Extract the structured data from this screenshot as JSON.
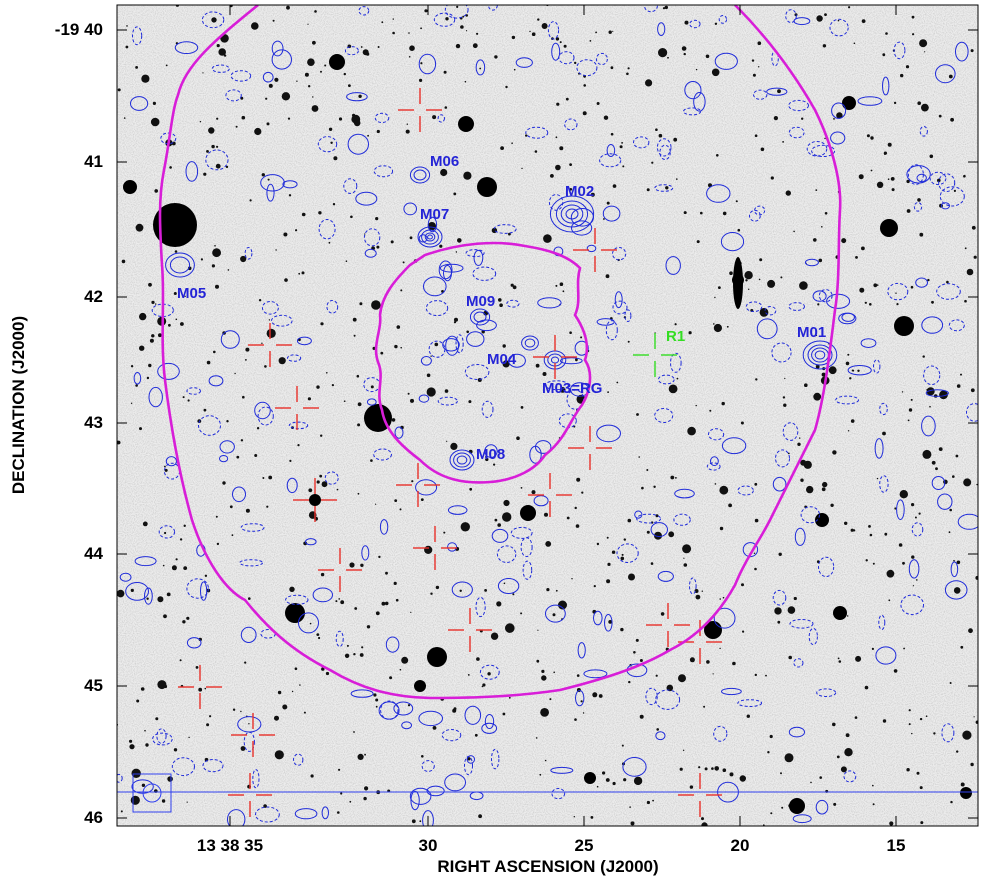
{
  "axes": {
    "xlabel": "RIGHT ASCENSION (J2000)",
    "ylabel": "DECLINATION (J2000)",
    "x_ticks": [
      "13 38 35",
      "30",
      "25",
      "20",
      "15"
    ],
    "y_ticks": [
      "-19 40",
      "41",
      "42",
      "43",
      "44",
      "45",
      "46"
    ]
  },
  "colors": {
    "contour": "#1f2bd9",
    "ring": "#d81ed8",
    "cross": "#e8302a",
    "label": "#2424d6",
    "r1": "#33dd22",
    "background": "#e9e9e9"
  },
  "sources": [
    {
      "id": "M01",
      "label": "M01",
      "color": "label"
    },
    {
      "id": "M02",
      "label": "M02",
      "color": "label"
    },
    {
      "id": "M03",
      "label": "M03=RG",
      "color": "label"
    },
    {
      "id": "M04",
      "label": "M04",
      "color": "label"
    },
    {
      "id": "M05",
      "label": "M05",
      "color": "label"
    },
    {
      "id": "M06",
      "label": "M06",
      "color": "label"
    },
    {
      "id": "M07",
      "label": "M07",
      "color": "label"
    },
    {
      "id": "M08",
      "label": "M08",
      "color": "label"
    },
    {
      "id": "M09",
      "label": "M09",
      "color": "label"
    },
    {
      "id": "R1",
      "label": "R1",
      "color": "r1"
    }
  ]
}
